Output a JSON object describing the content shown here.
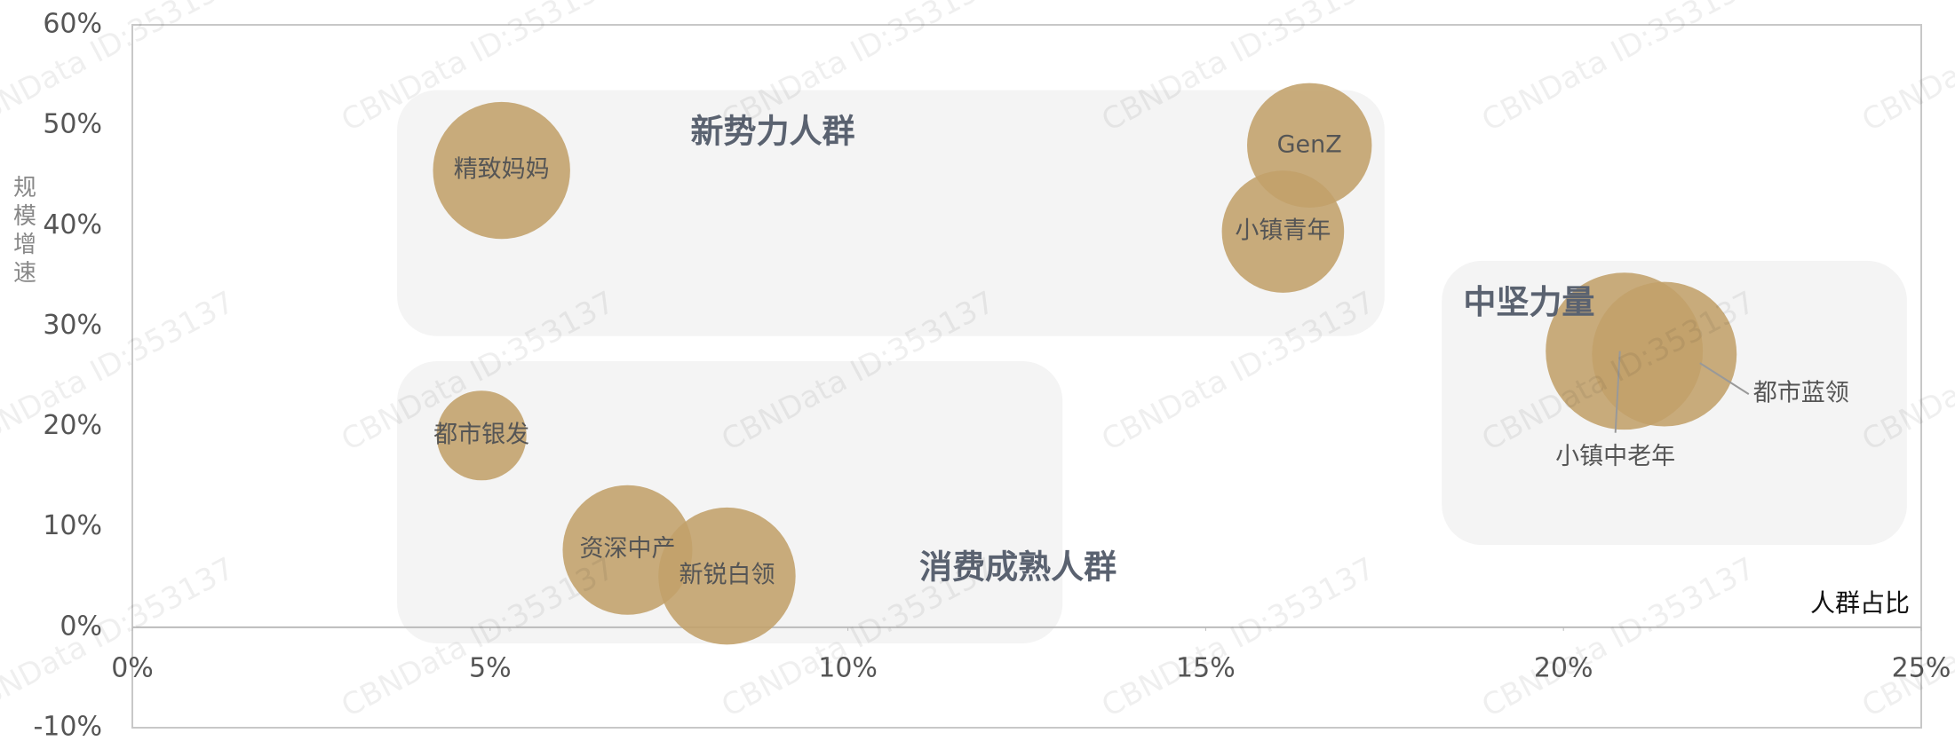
{
  "chart_data": {
    "type": "bubble",
    "x_label": "人群占比",
    "y_label": "规模增速",
    "watermark": "CBNData ID:353137",
    "color": "#c2a06a",
    "labels": [
      "精致妈妈",
      "GenZ",
      "小镇青年",
      "都市银发",
      "资深中产",
      "新锐白领",
      "小镇中老年",
      "都市蓝领"
    ],
    "x": [
      5.16,
      16.45,
      16.08,
      4.88,
      6.92,
      8.31,
      20.85,
      21.41
    ],
    "values": [
      45.5,
      48,
      39.4,
      19.1,
      7.7,
      5.1,
      27.5,
      27.2
    ],
    "sizes": [
      55,
      50,
      49,
      36,
      52,
      55,
      63,
      58
    ],
    "annotations": [
      "新势力人群",
      "消费成熟人群",
      "中坚力量"
    ],
    "xlim": [
      0,
      25
    ],
    "xticks": [
      {
        "value": 0,
        "label": "0%"
      },
      {
        "value": 5,
        "label": "5%"
      },
      {
        "value": 10,
        "label": "10%"
      },
      {
        "value": 15,
        "label": "15%"
      },
      {
        "value": 20,
        "label": "20%"
      },
      {
        "value": 25,
        "label": "25%"
      }
    ],
    "ylim": [
      -10,
      60
    ],
    "yticks": [
      {
        "value": -10,
        "label": "-10%"
      },
      {
        "value": 0,
        "label": "0%"
      },
      {
        "value": 10,
        "label": "10%"
      },
      {
        "value": 20,
        "label": "20%"
      },
      {
        "value": 30,
        "label": "30%"
      },
      {
        "value": 40,
        "label": "40%"
      },
      {
        "value": 50,
        "label": "50%"
      },
      {
        "value": 60,
        "label": "60%"
      }
    ]
  }
}
